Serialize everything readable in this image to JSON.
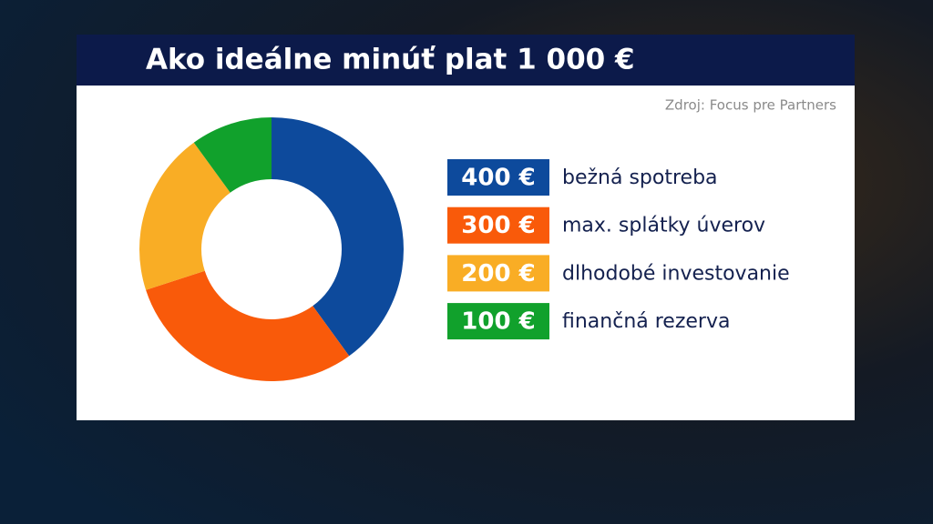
{
  "chart_data": {
    "type": "donut",
    "title": "Ako ideálne minúť plat 1 000 €",
    "source": "Zdroj: Focus pre Partners",
    "categories": [
      "bežná spotreba",
      "max. splátky úverov",
      "dlhodobé investovanie",
      "finančná rezerva"
    ],
    "values": [
      400,
      300,
      200,
      100
    ],
    "value_labels": [
      "400 €",
      "300 €",
      "200 €",
      "100 €"
    ],
    "colors": [
      "#0d4a9c",
      "#f95a0a",
      "#f9ad25",
      "#11a12c"
    ]
  }
}
